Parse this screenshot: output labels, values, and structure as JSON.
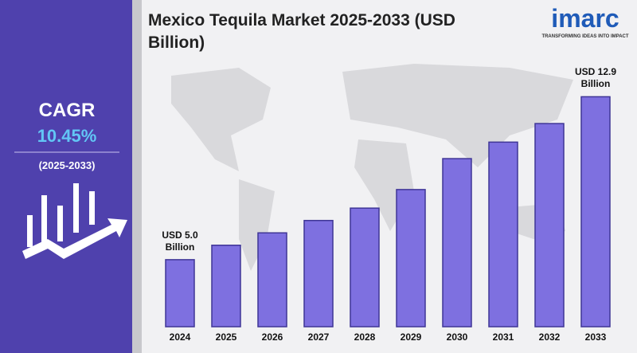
{
  "panel": {
    "label": "CAGR",
    "value": "10.45%",
    "period": "(2025-2033)"
  },
  "logo": {
    "name": "imarc",
    "tagline": "TRANSFORMING IDEAS INTO IMPACT"
  },
  "chart_data": {
    "type": "bar",
    "title": "Mexico Tequila Market 2025-2033 (USD Billion)",
    "categories": [
      "2024",
      "2025",
      "2026",
      "2027",
      "2028",
      "2029",
      "2030",
      "2031",
      "2032",
      "2033"
    ],
    "values": [
      5.0,
      5.7,
      6.3,
      6.9,
      7.5,
      8.4,
      9.9,
      10.7,
      11.6,
      12.9
    ],
    "value_labels": [
      "USD 5.0 Billion",
      null,
      null,
      null,
      null,
      null,
      null,
      null,
      null,
      "USD 12.9 Billion"
    ],
    "color": "#7e70e0",
    "ylim": [
      1.75,
      14.5
    ]
  }
}
